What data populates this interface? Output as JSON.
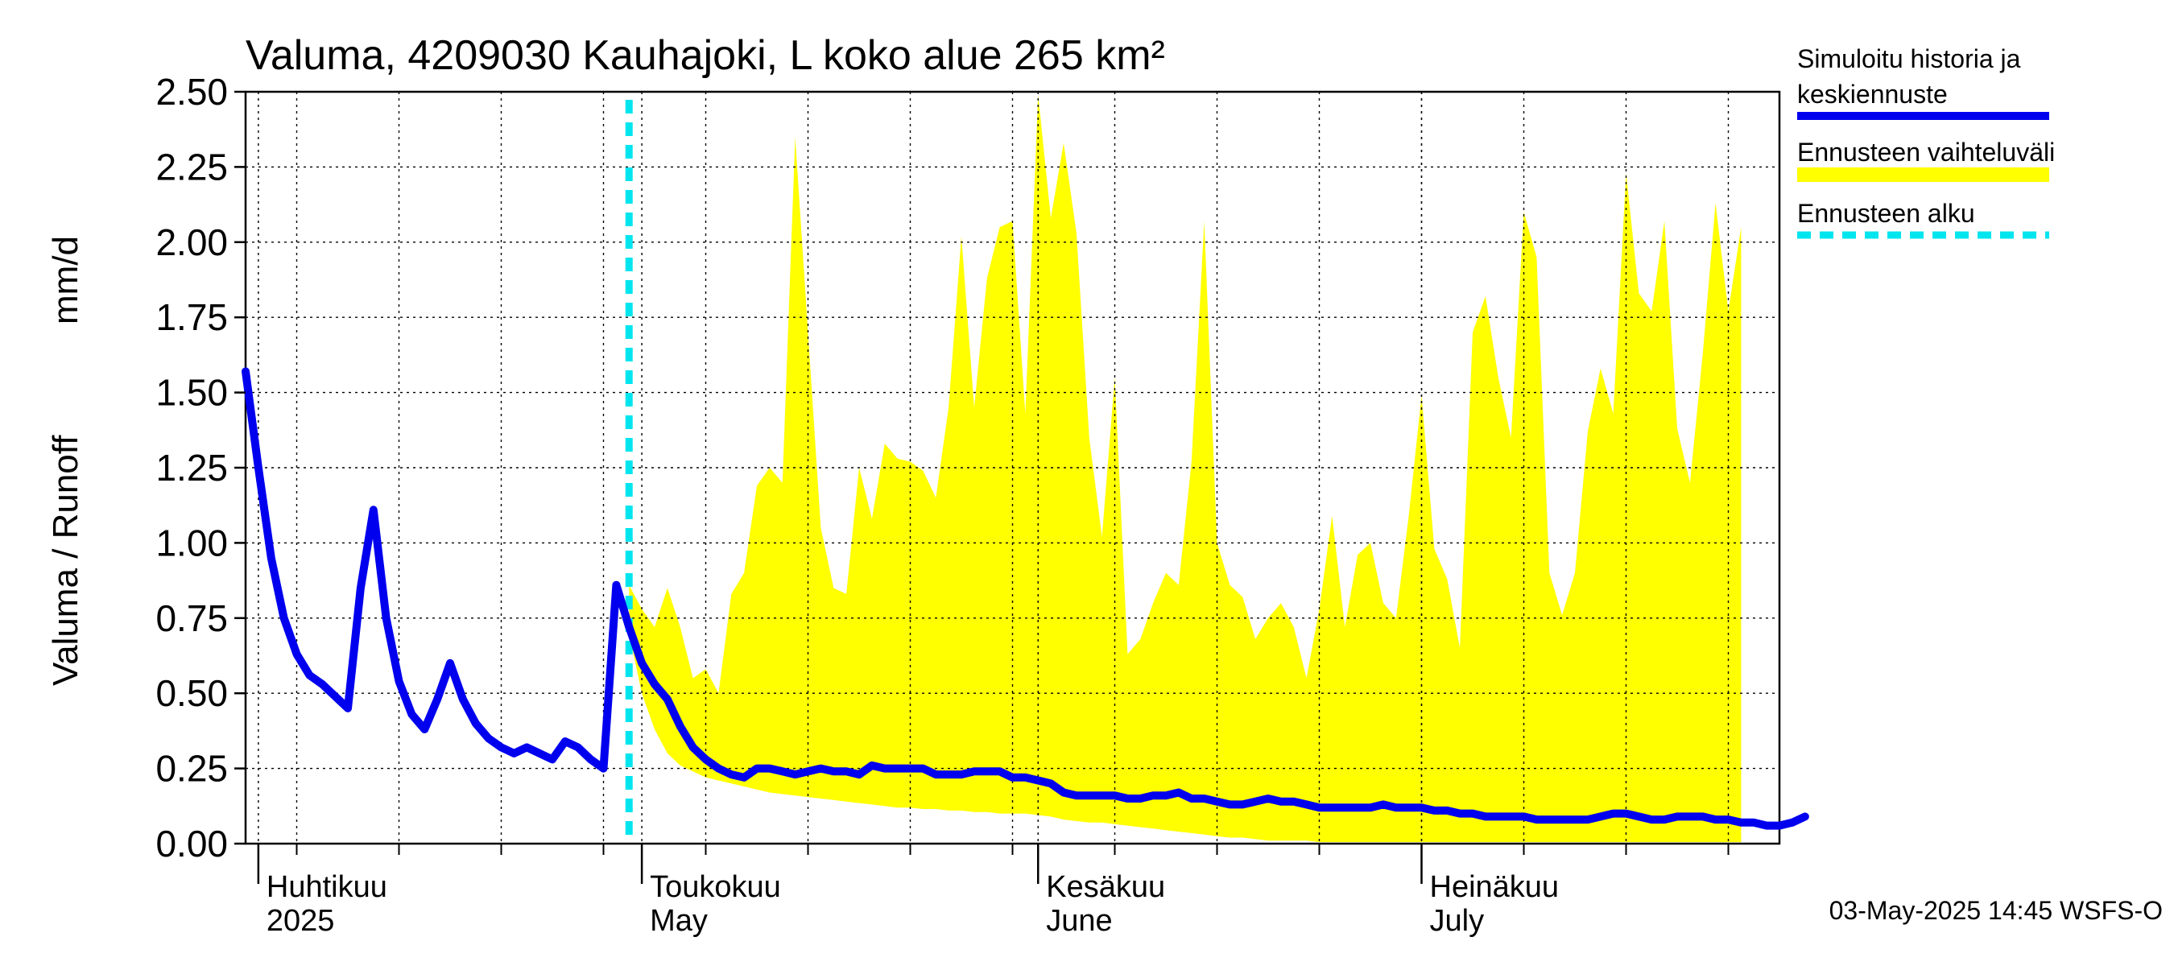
{
  "chart_data": {
    "type": "area",
    "title": "Valuma, 4209030 Kauhajoki, L koko alue 265 km²",
    "ylabel_left": "Valuma / Runoff",
    "ylabel_unit": "mm/d",
    "ylim": [
      0,
      2.5
    ],
    "yticks": [
      "0.00",
      "0.25",
      "0.50",
      "0.75",
      "1.00",
      "1.25",
      "1.50",
      "1.75",
      "2.00",
      "2.25",
      "2.50"
    ],
    "x_start": "2025-03-31",
    "x_end": "2025-07-30",
    "months": [
      {
        "fi": "Huhtikuu",
        "en": "2025",
        "day": 1
      },
      {
        "fi": "Toukokuu",
        "en": "May",
        "day": 31
      },
      {
        "fi": "Kesäkuu",
        "en": "June",
        "day": 62
      },
      {
        "fi": "Heinäkuu",
        "en": "July",
        "day": 92
      }
    ],
    "forecast_start_day": 30,
    "legend": [
      {
        "label_line1": "Simuloitu historia ja",
        "label_line2": "keskiennuste",
        "color": "#0000ee",
        "style": "solid"
      },
      {
        "label_line1": "Ennusteen vaihteluväli",
        "label_line2": "",
        "color": "#ffff00",
        "style": "band"
      },
      {
        "label_line1": "Ennusteen alku",
        "label_line2": "",
        "color": "#00e5ee",
        "style": "dashed"
      }
    ],
    "footer": "03-May-2025 14:45 WSFS-O",
    "series": [
      {
        "name": "Simuloitu historia ja keskiennuste",
        "x_start_day": 0,
        "values": [
          1.57,
          1.25,
          0.95,
          0.75,
          0.63,
          0.56,
          0.53,
          0.49,
          0.45,
          0.85,
          1.11,
          0.75,
          0.54,
          0.43,
          0.38,
          0.48,
          0.6,
          0.48,
          0.4,
          0.35,
          0.32,
          0.3,
          0.32,
          0.3,
          0.28,
          0.34,
          0.32,
          0.28,
          0.25,
          0.86,
          0.72,
          0.6,
          0.53,
          0.48,
          0.39,
          0.32,
          0.28,
          0.25,
          0.23,
          0.22,
          0.25,
          0.25,
          0.24,
          0.23,
          0.24,
          0.25,
          0.24,
          0.24,
          0.23,
          0.26,
          0.25,
          0.25,
          0.25,
          0.25,
          0.23,
          0.23,
          0.23,
          0.24,
          0.24,
          0.24,
          0.22,
          0.22,
          0.21,
          0.2,
          0.17,
          0.16,
          0.16,
          0.16,
          0.16,
          0.15,
          0.15,
          0.16,
          0.16,
          0.17,
          0.15,
          0.15,
          0.14,
          0.13,
          0.13,
          0.14,
          0.15,
          0.14,
          0.14,
          0.13,
          0.12,
          0.12,
          0.12,
          0.12,
          0.12,
          0.13,
          0.12,
          0.12,
          0.12,
          0.11,
          0.11,
          0.1,
          0.1,
          0.09,
          0.09,
          0.09,
          0.09,
          0.08,
          0.08,
          0.08,
          0.08,
          0.08,
          0.09,
          0.1,
          0.1,
          0.09,
          0.08,
          0.08,
          0.09,
          0.09,
          0.09,
          0.08,
          0.08,
          0.07,
          0.07,
          0.06,
          0.06,
          0.07,
          0.09
        ]
      },
      {
        "name": "Ennusteen vaihteluväli (ylä)",
        "x_start_day": 30,
        "values": [
          0.86,
          0.78,
          0.72,
          0.85,
          0.72,
          0.55,
          0.58,
          0.5,
          0.83,
          0.9,
          1.19,
          1.25,
          1.2,
          2.35,
          1.7,
          1.05,
          0.85,
          0.83,
          1.25,
          1.08,
          1.33,
          1.28,
          1.27,
          1.24,
          1.15,
          1.45,
          2.02,
          1.45,
          1.88,
          2.05,
          2.07,
          1.43,
          2.49,
          2.08,
          2.33,
          2.03,
          1.35,
          1.02,
          1.55,
          0.63,
          0.68,
          0.8,
          0.9,
          0.86,
          1.27,
          2.07,
          1.0,
          0.86,
          0.82,
          0.68,
          0.75,
          0.8,
          0.72,
          0.55,
          0.78,
          1.09,
          0.72,
          0.96,
          1.0,
          0.8,
          0.75,
          1.09,
          1.49,
          0.98,
          0.88,
          0.65,
          1.7,
          1.82,
          1.55,
          1.35,
          2.1,
          1.95,
          0.9,
          0.76,
          0.9,
          1.37,
          1.58,
          1.43,
          2.23,
          1.83,
          1.77,
          2.07,
          1.38,
          1.2,
          1.63,
          2.13,
          1.77,
          2.05
        ]
      },
      {
        "name": "Ennusteen vaihteluväli (ala)",
        "x_start_day": 30,
        "values": [
          0.7,
          0.5,
          0.38,
          0.3,
          0.26,
          0.24,
          0.22,
          0.21,
          0.2,
          0.19,
          0.18,
          0.17,
          0.165,
          0.16,
          0.155,
          0.15,
          0.145,
          0.14,
          0.135,
          0.13,
          0.125,
          0.12,
          0.12,
          0.115,
          0.115,
          0.11,
          0.11,
          0.105,
          0.105,
          0.1,
          0.1,
          0.1,
          0.095,
          0.09,
          0.08,
          0.075,
          0.07,
          0.07,
          0.065,
          0.06,
          0.055,
          0.05,
          0.045,
          0.04,
          0.035,
          0.03,
          0.025,
          0.02,
          0.02,
          0.015,
          0.01,
          0.01,
          0.01,
          0.01,
          0.005,
          0.005,
          0.005,
          0.005,
          0.005,
          0.005,
          0.005,
          0.005,
          0.005,
          0.005,
          0.005,
          0.005,
          0.005,
          0.005,
          0.005,
          0.005,
          0.005,
          0.005,
          0.005,
          0.005,
          0.005,
          0.005,
          0.005,
          0.005,
          0.005,
          0.005,
          0.005,
          0.005,
          0.005,
          0.005,
          0.005,
          0.005,
          0.005,
          0.005
        ]
      }
    ]
  }
}
